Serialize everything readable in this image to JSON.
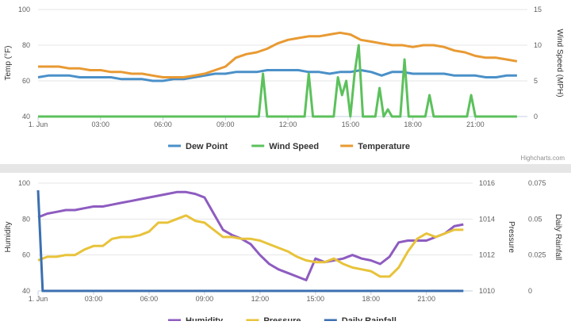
{
  "credit": "Highcharts.com",
  "chart_data": [
    {
      "type": "line",
      "x_ticks": [
        "1. Jun",
        "03:00",
        "06:00",
        "09:00",
        "12:00",
        "15:00",
        "18:00",
        "21:00"
      ],
      "left_axis": {
        "title": "Temp (°F)",
        "ticks": [
          "40",
          "60",
          "80",
          "100"
        ],
        "range": [
          40,
          100
        ]
      },
      "right_axis": {
        "title": "Wind Speed (MPH)",
        "ticks": [
          "0",
          "5",
          "10",
          "15"
        ],
        "range": [
          0,
          15
        ]
      },
      "grid": true,
      "legend_position": "bottom-center",
      "series": [
        {
          "name": "Dew Point",
          "axis": "left",
          "color": "#4a90c8",
          "points": [
            [
              0,
              62
            ],
            [
              0.5,
              63
            ],
            [
              1,
              63
            ],
            [
              1.5,
              63
            ],
            [
              2,
              62
            ],
            [
              2.5,
              62
            ],
            [
              3,
              62
            ],
            [
              3.5,
              62
            ],
            [
              4,
              61
            ],
            [
              4.5,
              61
            ],
            [
              5,
              61
            ],
            [
              5.5,
              60
            ],
            [
              6,
              60
            ],
            [
              6.5,
              61
            ],
            [
              7,
              61
            ],
            [
              7.5,
              62
            ],
            [
              8,
              63
            ],
            [
              8.5,
              64
            ],
            [
              9,
              64
            ],
            [
              9.5,
              65
            ],
            [
              10,
              65
            ],
            [
              10.5,
              65
            ],
            [
              11,
              66
            ],
            [
              11.5,
              66
            ],
            [
              12,
              66
            ],
            [
              12.5,
              66
            ],
            [
              13,
              65
            ],
            [
              13.5,
              65
            ],
            [
              14,
              64
            ],
            [
              14.5,
              65
            ],
            [
              15,
              65
            ],
            [
              15.5,
              66
            ],
            [
              16,
              65
            ],
            [
              16.5,
              63
            ],
            [
              17,
              65
            ],
            [
              17.5,
              65
            ],
            [
              18,
              64
            ],
            [
              18.5,
              64
            ],
            [
              19,
              64
            ],
            [
              19.5,
              64
            ],
            [
              20,
              63
            ],
            [
              20.5,
              63
            ],
            [
              21,
              63
            ],
            [
              21.5,
              62
            ],
            [
              22,
              62
            ],
            [
              22.5,
              63
            ],
            [
              23,
              63
            ]
          ]
        },
        {
          "name": "Wind Speed",
          "axis": "right",
          "color": "#5cc15c",
          "points": [
            [
              0,
              0
            ],
            [
              10.6,
              0
            ],
            [
              10.8,
              6
            ],
            [
              11,
              0
            ],
            [
              12.8,
              0
            ],
            [
              13,
              6
            ],
            [
              13.2,
              0
            ],
            [
              14.2,
              0
            ],
            [
              14.4,
              5.5
            ],
            [
              14.6,
              3
            ],
            [
              14.8,
              5
            ],
            [
              15,
              0
            ],
            [
              15.2,
              6
            ],
            [
              15.4,
              10
            ],
            [
              15.6,
              0
            ],
            [
              16.2,
              0
            ],
            [
              16.4,
              4
            ],
            [
              16.6,
              0
            ],
            [
              16.8,
              1
            ],
            [
              17,
              0
            ],
            [
              17.4,
              0
            ],
            [
              17.6,
              8
            ],
            [
              17.8,
              0
            ],
            [
              18.6,
              0
            ],
            [
              18.8,
              3
            ],
            [
              19,
              0
            ],
            [
              20.6,
              0
            ],
            [
              20.8,
              3
            ],
            [
              21,
              0
            ],
            [
              23,
              0
            ]
          ]
        },
        {
          "name": "Temperature",
          "axis": "left",
          "color": "#e89a33",
          "points": [
            [
              0,
              68
            ],
            [
              0.5,
              68
            ],
            [
              1,
              68
            ],
            [
              1.5,
              67
            ],
            [
              2,
              67
            ],
            [
              2.5,
              66
            ],
            [
              3,
              66
            ],
            [
              3.5,
              65
            ],
            [
              4,
              65
            ],
            [
              4.5,
              64
            ],
            [
              5,
              64
            ],
            [
              5.5,
              63
            ],
            [
              6,
              62
            ],
            [
              6.5,
              62
            ],
            [
              7,
              62
            ],
            [
              7.5,
              63
            ],
            [
              8,
              64
            ],
            [
              8.5,
              66
            ],
            [
              9,
              68
            ],
            [
              9.5,
              73
            ],
            [
              10,
              75
            ],
            [
              10.5,
              76
            ],
            [
              11,
              78
            ],
            [
              11.5,
              81
            ],
            [
              12,
              83
            ],
            [
              12.5,
              84
            ],
            [
              13,
              85
            ],
            [
              13.5,
              85
            ],
            [
              14,
              86
            ],
            [
              14.5,
              87
            ],
            [
              15,
              86
            ],
            [
              15.5,
              83
            ],
            [
              16,
              82
            ],
            [
              16.5,
              81
            ],
            [
              17,
              80
            ],
            [
              17.5,
              80
            ],
            [
              18,
              79
            ],
            [
              18.5,
              80
            ],
            [
              19,
              80
            ],
            [
              19.5,
              79
            ],
            [
              20,
              77
            ],
            [
              20.5,
              76
            ],
            [
              21,
              74
            ],
            [
              21.5,
              73
            ],
            [
              22,
              73
            ],
            [
              22.5,
              72
            ],
            [
              23,
              71
            ]
          ]
        }
      ]
    },
    {
      "type": "line",
      "x_ticks": [
        "1. Jun",
        "03:00",
        "06:00",
        "09:00",
        "12:00",
        "15:00",
        "18:00",
        "21:00"
      ],
      "left_axis": {
        "title": "Humidity",
        "ticks": [
          "40",
          "60",
          "80",
          "100"
        ],
        "range": [
          40,
          100
        ]
      },
      "right_axis": {
        "title": "Pressure",
        "ticks": [
          "1010",
          "1012",
          "1014",
          "1016"
        ],
        "range": [
          1010,
          1016
        ]
      },
      "right_axis_2": {
        "title": "Daily Rainfall",
        "ticks": [
          "0",
          "0.025",
          "0.05",
          "0.075"
        ],
        "range": [
          0,
          0.075
        ]
      },
      "grid": true,
      "legend_position": "bottom-center",
      "series": [
        {
          "name": "Humidity",
          "axis": "left",
          "color": "#8e5cc0",
          "points": [
            [
              0,
              81
            ],
            [
              0.5,
              83
            ],
            [
              1,
              84
            ],
            [
              1.5,
              85
            ],
            [
              2,
              85
            ],
            [
              2.5,
              86
            ],
            [
              3,
              87
            ],
            [
              3.5,
              87
            ],
            [
              4,
              88
            ],
            [
              4.5,
              89
            ],
            [
              5,
              90
            ],
            [
              5.5,
              91
            ],
            [
              6,
              92
            ],
            [
              6.5,
              93
            ],
            [
              7,
              94
            ],
            [
              7.5,
              95
            ],
            [
              8,
              95
            ],
            [
              8.5,
              94
            ],
            [
              9,
              92
            ],
            [
              9.5,
              83
            ],
            [
              10,
              74
            ],
            [
              10.5,
              71
            ],
            [
              11,
              69
            ],
            [
              11.5,
              66
            ],
            [
              12,
              60
            ],
            [
              12.5,
              55
            ],
            [
              13,
              52
            ],
            [
              13.5,
              50
            ],
            [
              14,
              48
            ],
            [
              14.5,
              46
            ],
            [
              15,
              58
            ],
            [
              15.5,
              56
            ],
            [
              16,
              57
            ],
            [
              16.5,
              58
            ],
            [
              17,
              60
            ],
            [
              17.5,
              58
            ],
            [
              18,
              57
            ],
            [
              18.5,
              55
            ],
            [
              19,
              59
            ],
            [
              19.5,
              67
            ],
            [
              20,
              68
            ],
            [
              20.5,
              68
            ],
            [
              21,
              68
            ],
            [
              21.5,
              70
            ],
            [
              22,
              72
            ],
            [
              22.5,
              76
            ],
            [
              23,
              77
            ]
          ]
        },
        {
          "name": "Pressure",
          "axis": "right",
          "color": "#e8c33a",
          "points": [
            [
              0,
              1011.7
            ],
            [
              0.5,
              1011.9
            ],
            [
              1,
              1011.9
            ],
            [
              1.5,
              1012.0
            ],
            [
              2,
              1012.0
            ],
            [
              2.5,
              1012.3
            ],
            [
              3,
              1012.5
            ],
            [
              3.5,
              1012.5
            ],
            [
              4,
              1012.9
            ],
            [
              4.5,
              1013.0
            ],
            [
              5,
              1013.0
            ],
            [
              5.5,
              1013.1
            ],
            [
              6,
              1013.3
            ],
            [
              6.5,
              1013.8
            ],
            [
              7,
              1013.8
            ],
            [
              7.5,
              1014.0
            ],
            [
              8,
              1014.2
            ],
            [
              8.5,
              1013.9
            ],
            [
              9,
              1013.8
            ],
            [
              9.5,
              1013.4
            ],
            [
              10,
              1013.0
            ],
            [
              10.5,
              1013.0
            ],
            [
              11,
              1012.9
            ],
            [
              11.5,
              1012.9
            ],
            [
              12,
              1012.8
            ],
            [
              12.5,
              1012.6
            ],
            [
              13,
              1012.4
            ],
            [
              13.5,
              1012.2
            ],
            [
              14,
              1011.9
            ],
            [
              14.5,
              1011.7
            ],
            [
              15,
              1011.6
            ],
            [
              15.5,
              1011.6
            ],
            [
              16,
              1011.8
            ],
            [
              16.5,
              1011.5
            ],
            [
              17,
              1011.3
            ],
            [
              17.5,
              1011.2
            ],
            [
              18,
              1011.1
            ],
            [
              18.5,
              1010.8
            ],
            [
              19,
              1010.8
            ],
            [
              19.5,
              1011.3
            ],
            [
              20,
              1012.2
            ],
            [
              20.5,
              1012.9
            ],
            [
              21,
              1013.2
            ],
            [
              21.5,
              1013.0
            ],
            [
              22,
              1013.2
            ],
            [
              22.5,
              1013.4
            ],
            [
              23,
              1013.4
            ]
          ]
        },
        {
          "name": "Daily Rainfall",
          "axis": "right2",
          "color": "#3b6fb0",
          "points": [
            [
              0,
              0.07
            ],
            [
              0.25,
              0
            ],
            [
              23,
              0
            ]
          ]
        }
      ]
    }
  ]
}
